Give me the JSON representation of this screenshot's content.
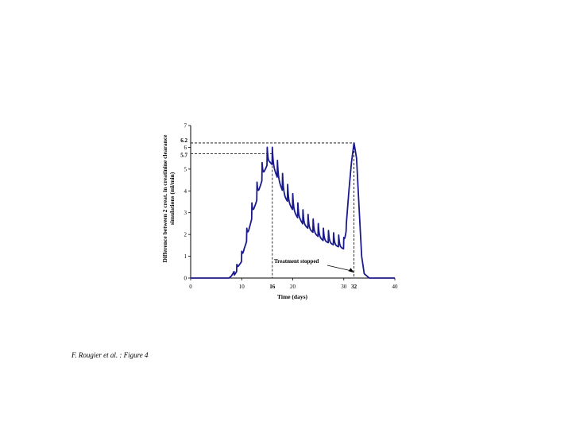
{
  "caption": "F. Rougier et al. : Figure 4",
  "chart_data": {
    "type": "line",
    "xlabel": "Time (days)",
    "ylabel_lines": [
      "Difference between 2 creat. in creatinine clearance",
      "simulations (ml/min)"
    ],
    "xlim": [
      0,
      40
    ],
    "ylim": [
      0,
      7
    ],
    "x_ticks": [
      "0",
      "10",
      "20",
      "30",
      "40"
    ],
    "y_ticks": [
      "0",
      "1",
      "2",
      "3",
      "4",
      "5",
      "6",
      "7"
    ],
    "reference_marks": {
      "x": [
        {
          "value": 16,
          "label": "16"
        },
        {
          "value": 32,
          "label": "32"
        }
      ],
      "y": [
        {
          "value": 6.2,
          "label": "6.2"
        },
        {
          "value": 5.7,
          "label": "5.7"
        }
      ]
    },
    "annotation": {
      "text": "Treatment stopped",
      "x": 32,
      "y": 0.1
    },
    "line_color": "#1a1a8c",
    "series": [
      {
        "x": [
          0,
          7.5,
          8.0,
          8.5,
          9.0,
          9.5,
          10.0,
          10.5,
          11.0,
          11.5,
          12.0,
          12.5,
          13.0,
          13.5,
          14.0,
          14.5,
          15.0,
          15.5,
          16.0,
          16.5,
          17.0,
          17.5,
          18.0,
          18.5,
          19.0,
          19.5,
          20.0,
          20.5,
          21.0,
          21.5,
          22.0,
          22.5,
          23.0,
          23.5,
          24.0,
          24.5,
          25.0,
          25.5,
          26.0,
          26.5,
          27.0,
          27.5,
          28.0,
          28.5,
          29.0,
          29.5,
          30.0,
          30.5,
          31.0,
          31.5,
          32.0,
          32.5,
          33.0,
          33.5,
          34.0,
          35.0,
          40.0
        ],
        "y": [
          0,
          0,
          0.1,
          0.3,
          0.5,
          0.8,
          1.0,
          1.6,
          2.0,
          2.6,
          3.1,
          3.6,
          4.0,
          4.5,
          4.9,
          5.3,
          5.6,
          5.7,
          5.6,
          5.3,
          5.0,
          4.7,
          4.4,
          4.1,
          3.9,
          3.7,
          3.5,
          3.3,
          3.1,
          3.0,
          2.8,
          2.7,
          2.6,
          2.5,
          2.4,
          2.3,
          2.2,
          2.1,
          2.0,
          1.95,
          1.9,
          1.85,
          1.8,
          1.75,
          1.7,
          1.65,
          1.6,
          2.5,
          4.0,
          5.3,
          6.2,
          5.5,
          3.2,
          1.0,
          0.2,
          0,
          0
        ]
      }
    ]
  }
}
